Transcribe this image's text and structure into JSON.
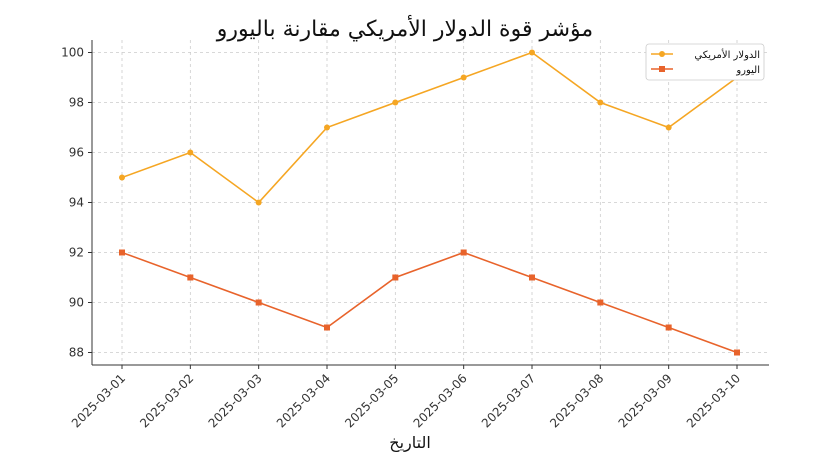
{
  "chart_data": {
    "type": "line",
    "title": "مؤشر قوة الدولار الأمريكي مقارنة باليورو",
    "xlabel": "التاريخ",
    "ylabel": "",
    "categories": [
      "2025-03-01",
      "2025-03-02",
      "2025-03-03",
      "2025-03-04",
      "2025-03-05",
      "2025-03-06",
      "2025-03-07",
      "2025-03-08",
      "2025-03-09",
      "2025-03-10"
    ],
    "ylim": [
      87.5,
      100.5
    ],
    "yticks": [
      88,
      90,
      92,
      94,
      96,
      98,
      100
    ],
    "grid": true,
    "legend_position": "top-right",
    "series": [
      {
        "name": "الدولار الأمريكي",
        "color": "#f5a623",
        "marker": "circle",
        "values": [
          95,
          96,
          94,
          97,
          98,
          99,
          100,
          98,
          97,
          99
        ]
      },
      {
        "name": "اليورو",
        "color": "#e8632b",
        "marker": "square",
        "values": [
          92,
          91,
          90,
          89,
          91,
          92,
          91,
          90,
          89,
          88
        ]
      }
    ]
  }
}
